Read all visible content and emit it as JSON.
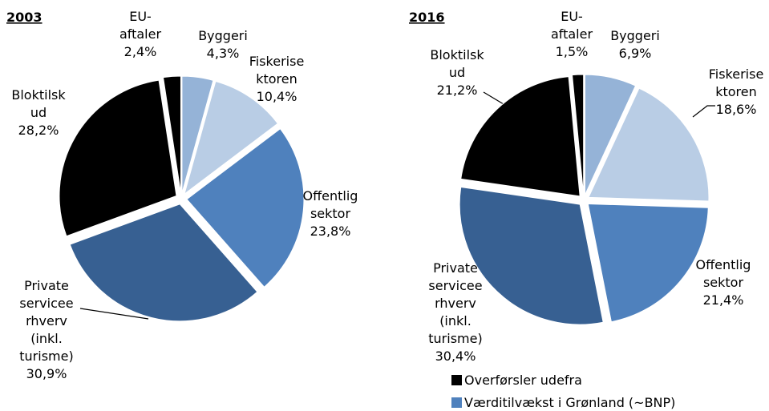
{
  "chart_data": [
    {
      "type": "pie",
      "title": "2003",
      "categories": [
        [
          "Byggeri"
        ],
        [
          "Fiskerise",
          "ktoren"
        ],
        [
          "Offentlig",
          "sektor"
        ],
        [
          "Private",
          "servicee",
          "rhverv",
          "(inkl.",
          "turisme)"
        ],
        [
          "Bloktilsk",
          "ud"
        ],
        [
          "EU-",
          "aftaler"
        ]
      ],
      "values": [
        4.3,
        10.4,
        23.8,
        30.9,
        28.2,
        2.4
      ],
      "value_labels": [
        "4,3%",
        "10,4%",
        "23,8%",
        "30,9%",
        "28,2%",
        "2,4%"
      ],
      "colors": [
        "#95b3d7",
        "#b9cde5",
        "#4f81bd",
        "#376092",
        "#000000",
        "#000000"
      ]
    },
    {
      "type": "pie",
      "title": "2016",
      "categories": [
        [
          "Byggeri"
        ],
        [
          "Fiskerise",
          "ktoren"
        ],
        [
          "Offentlig",
          "sektor"
        ],
        [
          "Private",
          "servicee",
          "rhverv",
          "(inkl.",
          "turisme)"
        ],
        [
          "Bloktilsk",
          "ud"
        ],
        [
          "EU-",
          "aftaler"
        ]
      ],
      "values": [
        6.9,
        18.6,
        21.4,
        30.4,
        21.2,
        1.5
      ],
      "value_labels": [
        "6,9%",
        "18,6%",
        "21,4%",
        "30,4%",
        "21,2%",
        "1,5%"
      ],
      "colors": [
        "#95b3d7",
        "#b9cde5",
        "#4f81bd",
        "#376092",
        "#000000",
        "#000000"
      ],
      "legend": [
        {
          "name": "Overførsler udefra",
          "color": "#000000"
        },
        {
          "name": "Værditilvækst i Grønland (~BNP)",
          "color": "#4f81bd"
        }
      ]
    }
  ]
}
